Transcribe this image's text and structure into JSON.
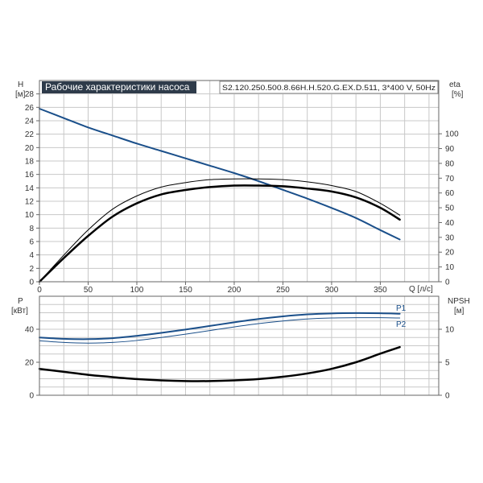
{
  "title": "Рабочие характеристики насоса",
  "model": "S2.120.250.500.8.66H.H.520.G.EX.D.511, 3*400 V, 50Hz",
  "colors": {
    "head": "#1a4f8a",
    "eta": "#000000",
    "power": "#1a4f8a",
    "npsh": "#000000",
    "grid": "#c8c8c8",
    "title_bg": "#2e3b4a"
  },
  "chart_data": [
    {
      "type": "line",
      "name": "performance",
      "xlabel": "Q [л/с]",
      "x_ticks": [
        "0",
        "50",
        "100",
        "150",
        "200",
        "250",
        "300",
        "350"
      ],
      "xlim": [
        0,
        410
      ],
      "left_axis": {
        "label_top": "H",
        "label_unit": "[м]",
        "ylim": [
          0,
          30
        ],
        "ticks": [
          "0",
          "2",
          "4",
          "6",
          "8",
          "10",
          "12",
          "14",
          "16",
          "18",
          "20",
          "22",
          "24",
          "26",
          "28"
        ]
      },
      "right_axis": {
        "label_top": "eta",
        "label_unit": "[%]",
        "ylim": [
          0,
          136
        ],
        "ticks": [
          "0",
          "10",
          "20",
          "30",
          "40",
          "50",
          "60",
          "70",
          "80",
          "90",
          "100"
        ]
      },
      "series": [
        {
          "axis": "left",
          "color": "#1a4f8a",
          "width": 2,
          "x": [
            0,
            25,
            50,
            75,
            100,
            125,
            150,
            175,
            200,
            225,
            250,
            275,
            300,
            325,
            350,
            370
          ],
          "y": [
            25.8,
            24.4,
            23.0,
            21.8,
            20.6,
            19.5,
            18.4,
            17.3,
            16.2,
            15.0,
            13.7,
            12.4,
            11.0,
            9.5,
            7.7,
            6.3
          ]
        },
        {
          "axis": "right",
          "color": "#000000",
          "width": 1,
          "x": [
            0,
            25,
            50,
            75,
            100,
            125,
            150,
            175,
            200,
            225,
            250,
            275,
            300,
            325,
            350,
            370
          ],
          "y": [
            0,
            18,
            35,
            49,
            58,
            64,
            67,
            69,
            69.5,
            69.5,
            69,
            67.5,
            65,
            61,
            53,
            45
          ]
        },
        {
          "axis": "right",
          "color": "#000000",
          "width": 2.5,
          "x": [
            0,
            25,
            50,
            75,
            100,
            125,
            150,
            175,
            200,
            225,
            250,
            275,
            300,
            325,
            350,
            370
          ],
          "y": [
            0,
            16,
            31,
            44,
            53,
            59,
            62,
            64,
            65,
            65,
            64.5,
            63,
            61,
            57,
            50,
            42
          ]
        }
      ]
    },
    {
      "type": "line",
      "name": "power-npsh",
      "left_axis": {
        "label_top": "P",
        "label_unit": "[кВт]",
        "ylim": [
          0,
          60
        ],
        "ticks": [
          "0",
          "20",
          "40"
        ]
      },
      "right_axis": {
        "label_top": "NPSH",
        "label_unit": "[м]",
        "ylim": [
          0,
          15
        ],
        "ticks": [
          "0",
          "5",
          "10"
        ]
      },
      "xlim": [
        0,
        410
      ],
      "series": [
        {
          "name": "P1",
          "axis": "left",
          "color": "#1a4f8a",
          "width": 2,
          "x": [
            0,
            25,
            50,
            75,
            100,
            125,
            150,
            175,
            200,
            225,
            250,
            275,
            300,
            325,
            350,
            370
          ],
          "y": [
            35,
            34.2,
            34.0,
            34.6,
            36.0,
            37.8,
            39.8,
            42.0,
            44.2,
            46.2,
            47.8,
            49.0,
            49.6,
            49.8,
            49.7,
            49.4
          ]
        },
        {
          "name": "P2",
          "axis": "left",
          "color": "#1a4f8a",
          "width": 1,
          "x": [
            0,
            25,
            50,
            75,
            100,
            125,
            150,
            175,
            200,
            225,
            250,
            275,
            300,
            325,
            350,
            370
          ],
          "y": [
            33,
            32.0,
            31.6,
            32.0,
            33.2,
            35.0,
            37.0,
            39.2,
            41.4,
            43.4,
            45.0,
            46.2,
            46.8,
            47.0,
            47.0,
            46.8
          ]
        },
        {
          "axis": "right",
          "color": "#000000",
          "width": 2.5,
          "x": [
            0,
            25,
            50,
            75,
            100,
            125,
            150,
            175,
            200,
            225,
            250,
            275,
            300,
            325,
            350,
            370
          ],
          "y": [
            4.0,
            3.55,
            3.1,
            2.75,
            2.45,
            2.25,
            2.15,
            2.15,
            2.25,
            2.45,
            2.8,
            3.3,
            4.0,
            5.0,
            6.3,
            7.3
          ]
        }
      ]
    }
  ]
}
